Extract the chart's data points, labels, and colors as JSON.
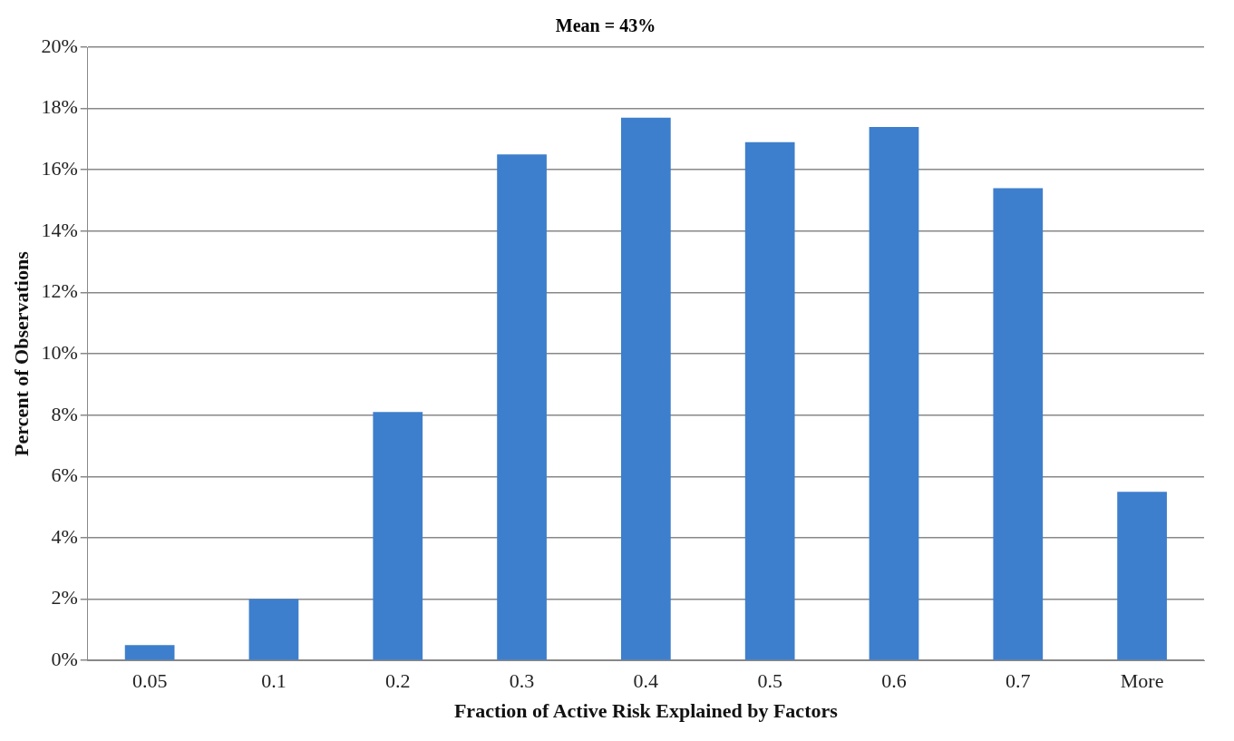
{
  "chart_data": {
    "type": "bar",
    "title": "Mean = 43%",
    "xlabel": "Fraction of Active Risk Explained by Factors",
    "ylabel": "Percent of Observations",
    "categories": [
      "0.05",
      "0.1",
      "0.2",
      "0.3",
      "0.4",
      "0.5",
      "0.6",
      "0.7",
      "More"
    ],
    "values": [
      0.5,
      2.0,
      8.1,
      16.5,
      17.7,
      16.9,
      17.4,
      15.4,
      5.5
    ],
    "color": "#3d7fcc",
    "ylim": [
      0,
      20
    ],
    "yticks": [
      {
        "value": 0,
        "label": "0%"
      },
      {
        "value": 2,
        "label": "2%"
      },
      {
        "value": 4,
        "label": "4%"
      },
      {
        "value": 6,
        "label": "6%"
      },
      {
        "value": 8,
        "label": "8%"
      },
      {
        "value": 10,
        "label": "10%"
      },
      {
        "value": 12,
        "label": "12%"
      },
      {
        "value": 14,
        "label": "14%"
      },
      {
        "value": 16,
        "label": "16%"
      },
      {
        "value": 18,
        "label": "18%"
      },
      {
        "value": 20,
        "label": "20%"
      }
    ],
    "grid": "y",
    "legend": false
  }
}
